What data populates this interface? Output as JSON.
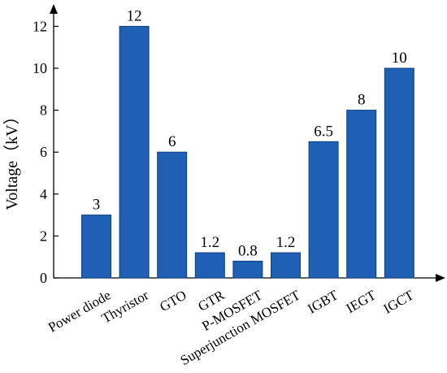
{
  "chart_data": {
    "type": "bar",
    "title": "",
    "xlabel": "",
    "ylabel": "Voltage（kV）",
    "categories": [
      "Power diode",
      "Thyristor",
      "GTO",
      "GTR",
      "P-MOSFET",
      "Superjunction MOSFET",
      "IGBT",
      "IEGT",
      "IGCT"
    ],
    "values": [
      3,
      12,
      6,
      1.2,
      0.8,
      1.2,
      6.5,
      8,
      10
    ],
    "data_labels": [
      "3",
      "12",
      "6",
      "1.2",
      "0.8",
      "1.2",
      "6.5",
      "8",
      "10"
    ],
    "y_ticks": [
      0,
      2,
      4,
      6,
      8,
      10,
      12
    ],
    "y_tick_labels": [
      "0",
      "2",
      "4",
      "6",
      "8",
      "10",
      "12"
    ],
    "ylim": [
      0,
      13.2
    ],
    "grid": false,
    "bar_color": "#1f5fb4",
    "bar_edge_color": "#0d3f7e",
    "axis_color": "#000000"
  }
}
